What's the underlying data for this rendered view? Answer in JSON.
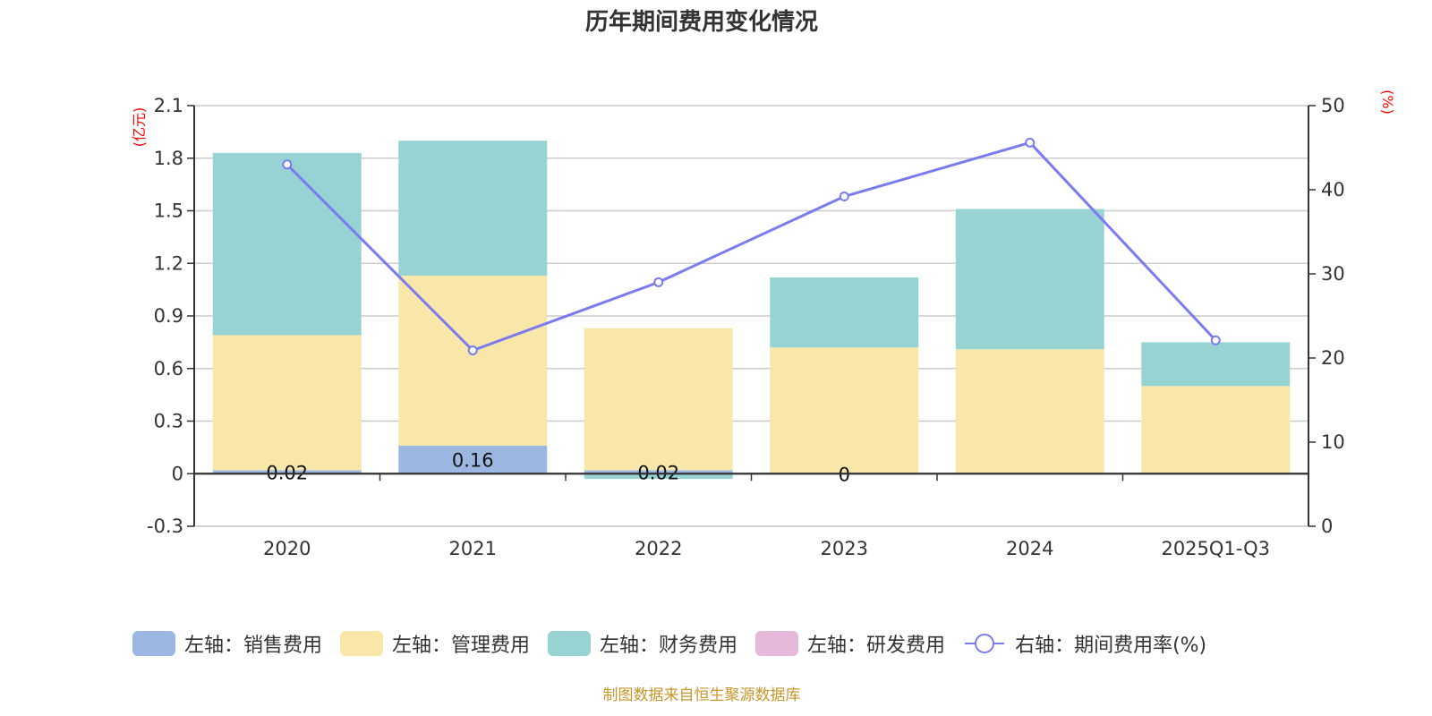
{
  "title": "历年期间费用变化情况",
  "footer": "制图数据来自恒生聚源数据库",
  "colors": {
    "sales": "#9cb8e2",
    "admin": "#f8e7a9",
    "finance": "#97d3d3",
    "rnd": "#e6b9da",
    "rate": "#7b7bf0",
    "axis_unit": "#ff0000",
    "footer": "#c8962a"
  },
  "chart_data": {
    "type": "bar",
    "title": "历年期间费用变化情况",
    "categories": [
      "2020",
      "2021",
      "2022",
      "2023",
      "2024",
      "2025Q1-Q3"
    ],
    "left_axis": {
      "unit_label": "(亿元)",
      "ylim": [
        -0.3,
        2.1
      ],
      "ticks": [
        "2.1",
        "1.8",
        "1.5",
        "1.2",
        "0.9",
        "0.6",
        "0.3",
        "0",
        "-0.3"
      ]
    },
    "right_axis": {
      "unit_label": "(%)",
      "ylim": [
        0,
        50
      ],
      "ticks": [
        "50",
        "40",
        "30",
        "20",
        "10",
        "0"
      ]
    },
    "grid": true,
    "legend_position": "bottom",
    "series": [
      {
        "name": "左轴：销售费用",
        "key": "sales",
        "type": "bar",
        "axis": "left",
        "values": [
          0.02,
          0.16,
          0.02,
          0,
          0,
          0
        ],
        "labels": [
          "0.02",
          "0.16",
          "0.02",
          "0",
          "",
          ""
        ]
      },
      {
        "name": "左轴：管理费用",
        "key": "admin",
        "type": "bar",
        "axis": "left",
        "values": [
          0.77,
          0.97,
          0.81,
          0.72,
          0.71,
          0.5
        ]
      },
      {
        "name": "左轴：财务费用",
        "key": "finance",
        "type": "bar",
        "axis": "left",
        "values": [
          1.04,
          0.77,
          -0.03,
          0.4,
          0.8,
          0.25
        ]
      },
      {
        "name": "左轴：研发费用",
        "key": "rnd",
        "type": "bar",
        "axis": "left",
        "values": [
          0,
          0,
          0,
          0,
          0,
          0
        ]
      },
      {
        "name": "右轴：期间费用率(%)",
        "key": "rate",
        "type": "line",
        "axis": "right",
        "values": [
          43.0,
          20.9,
          29.0,
          39.2,
          45.6,
          22.1
        ]
      }
    ]
  },
  "legend": [
    {
      "label": "左轴：销售费用",
      "key": "sales"
    },
    {
      "label": "左轴：管理费用",
      "key": "admin"
    },
    {
      "label": "左轴：财务费用",
      "key": "finance"
    },
    {
      "label": "左轴：研发费用",
      "key": "rnd"
    },
    {
      "label": "右轴：期间费用率(%)",
      "key": "rate"
    }
  ]
}
